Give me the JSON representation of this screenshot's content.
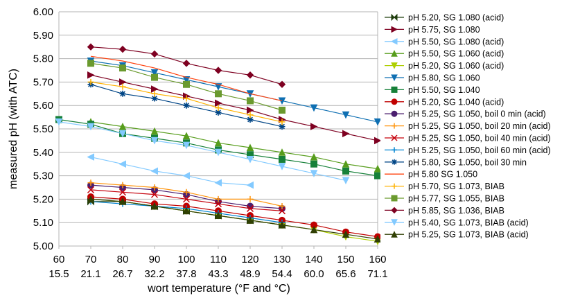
{
  "chart_data": {
    "type": "line",
    "title": "",
    "xlabel": "wort temperature (°F and °C)",
    "ylabel": "measured pH (with ATC)",
    "ylim": [
      5.0,
      6.0
    ],
    "xlim": [
      60,
      160
    ],
    "grid": "horizontal",
    "legend": "right",
    "y_ticks": [
      "5.00",
      "5.10",
      "5.20",
      "5.30",
      "5.40",
      "5.50",
      "5.60",
      "5.70",
      "5.80",
      "5.90",
      "6.00"
    ],
    "x_ticks_f": [
      "60",
      "70",
      "80",
      "90",
      "100",
      "110",
      "120",
      "130",
      "140",
      "150",
      "160"
    ],
    "x_ticks_c": [
      "15.5",
      "21.1",
      "26.7",
      "32.2",
      "37.8",
      "43.3",
      "48.9",
      "54.4",
      "60.0",
      "65.6",
      "71.1"
    ],
    "series": [
      {
        "name": "pH 5.20, SG 1.080 (acid)",
        "color": "#1f3d0c",
        "marker": "bowtie",
        "x": [
          70,
          80,
          90,
          100,
          110,
          120,
          130
        ],
        "y": [
          5.19,
          5.19,
          5.17,
          5.15,
          5.13,
          5.11,
          5.09
        ]
      },
      {
        "name": "pH 5.75, SG 1.080",
        "color": "#7e0021",
        "marker": "tri-right",
        "x": [
          70,
          80,
          90,
          100,
          110,
          120,
          130,
          140,
          150,
          160
        ],
        "y": [
          5.73,
          5.7,
          5.67,
          5.64,
          5.61,
          5.58,
          5.54,
          5.51,
          5.48,
          5.45
        ]
      },
      {
        "name": "pH 5.50, SG 1.080 (acid)",
        "color": "#83caff",
        "marker": "tri-left",
        "x": [
          70,
          80,
          90,
          100,
          110,
          120
        ],
        "y": [
          5.38,
          5.35,
          5.32,
          5.3,
          5.27,
          5.26
        ]
      },
      {
        "name": "pH 5.50, SG 1.060 (acid)",
        "color": "#579d1c",
        "marker": "tri-up",
        "x": [
          70,
          80,
          90,
          100,
          110,
          120,
          130,
          140,
          150,
          160
        ],
        "y": [
          5.53,
          5.51,
          5.49,
          5.47,
          5.44,
          5.42,
          5.4,
          5.38,
          5.35,
          5.33
        ]
      },
      {
        "name": "pH 5.20, SG 1.060 (acid)",
        "color": "#aecf00",
        "marker": "tri-down-bar",
        "x": [
          70,
          80,
          90,
          100,
          110,
          120,
          130,
          140,
          150,
          160
        ],
        "y": [
          5.2,
          5.19,
          5.17,
          5.15,
          5.13,
          5.11,
          5.09,
          5.07,
          5.04,
          5.02
        ]
      },
      {
        "name": "pH 5.80, SG 1.060",
        "color": "#0e6fb2",
        "marker": "tri-down",
        "x": [
          70,
          80,
          90,
          100,
          110,
          120,
          130,
          140,
          150,
          160
        ],
        "y": [
          5.79,
          5.77,
          5.74,
          5.71,
          5.68,
          5.65,
          5.62,
          5.59,
          5.56,
          5.53
        ]
      },
      {
        "name": "pH 5.50, SG 1.040",
        "color": "#168039",
        "marker": "square",
        "x": [
          60,
          70,
          80,
          90,
          100,
          110,
          120,
          130,
          140,
          150,
          160
        ],
        "y": [
          5.54,
          5.52,
          5.48,
          5.46,
          5.44,
          5.41,
          5.39,
          5.37,
          5.35,
          5.32,
          5.3
        ]
      },
      {
        "name": "pH 5.20, SG 1.040 (acid)",
        "color": "#c00000",
        "marker": "circle",
        "x": [
          70,
          80,
          90,
          100,
          110,
          120,
          130,
          140,
          150,
          160
        ],
        "y": [
          5.21,
          5.2,
          5.18,
          5.17,
          5.15,
          5.13,
          5.11,
          5.09,
          5.06,
          5.04
        ]
      },
      {
        "name": "pH 5.25, SG 1.050, boil 0 min (acid)",
        "color": "#4b1f6f",
        "marker": "circle",
        "x": [
          70,
          80,
          90,
          100,
          110,
          120,
          130
        ],
        "y": [
          5.26,
          5.25,
          5.24,
          5.22,
          5.19,
          5.17,
          5.16
        ]
      },
      {
        "name": "pH 5.25, SG 1.050, boil 20 min (acid)",
        "color": "#ff950e",
        "marker": "plus",
        "x": [
          70,
          80,
          90,
          100,
          110,
          120,
          130
        ],
        "y": [
          5.27,
          5.26,
          5.25,
          5.23,
          5.2,
          5.2,
          5.17
        ]
      },
      {
        "name": "pH 5.25, SG 1.050, boil 40 min (acid)",
        "color": "#c5000b",
        "marker": "x",
        "x": [
          70,
          80,
          90,
          100,
          110,
          120,
          130
        ],
        "y": [
          5.24,
          5.23,
          5.22,
          5.2,
          5.18,
          5.16,
          5.15
        ]
      },
      {
        "name": "pH 5.25, SG 1.050, boil 60 min (acid)",
        "color": "#0084d1",
        "marker": "plus",
        "x": [
          70,
          80,
          90,
          100,
          110,
          120,
          130
        ],
        "y": [
          5.19,
          5.18,
          5.17,
          5.16,
          5.14,
          5.12,
          5.1
        ]
      },
      {
        "name": "pH 5.80, SG 1.050, boil 30 min",
        "color": "#004586",
        "marker": "star",
        "x": [
          70,
          80,
          90,
          100,
          110,
          120,
          130
        ],
        "y": [
          5.69,
          5.65,
          5.63,
          5.6,
          5.57,
          5.54,
          5.51
        ]
      },
      {
        "name": "pH 5.80 SG 1.050",
        "color": "#ff420e",
        "marker": "none",
        "x": [
          70,
          80,
          90,
          100,
          110,
          120,
          130
        ],
        "y": [
          5.81,
          5.79,
          5.76,
          5.72,
          5.69,
          5.65,
          5.62
        ]
      },
      {
        "name": "pH 5.70, SG 1.073, BIAB",
        "color": "#ffb200",
        "marker": "plus",
        "x": [
          70,
          80,
          90,
          100,
          110,
          120,
          130
        ],
        "y": [
          5.7,
          5.68,
          5.65,
          5.63,
          5.59,
          5.56,
          5.53
        ]
      },
      {
        "name": "pH 5.77, SG 1.055, BIAB",
        "color": "#6a9a2e",
        "marker": "square",
        "x": [
          70,
          80,
          90,
          100,
          110,
          120,
          130
        ],
        "y": [
          5.78,
          5.76,
          5.72,
          5.69,
          5.65,
          5.62,
          5.58
        ]
      },
      {
        "name": "pH 5.85, SG 1.036, BIAB",
        "color": "#7e0021",
        "marker": "diamond",
        "x": [
          70,
          80,
          90,
          100,
          110,
          120,
          130
        ],
        "y": [
          5.85,
          5.84,
          5.82,
          5.78,
          5.75,
          5.73,
          5.69
        ]
      },
      {
        "name": "pH 5.40, SG 1.073, BIAB (acid)",
        "color": "#83caff",
        "marker": "tri-down",
        "x": [
          60,
          70,
          80,
          90,
          100,
          110,
          120,
          130,
          140,
          150
        ],
        "y": [
          5.53,
          5.51,
          5.48,
          5.45,
          5.43,
          5.4,
          5.37,
          5.34,
          5.31,
          5.28
        ]
      },
      {
        "name": "pH 5.25, SG 1.073, BIAB (acid)",
        "color": "#314004",
        "marker": "tri-up",
        "x": [
          70,
          80,
          90,
          100,
          110,
          120,
          130,
          140,
          150,
          160
        ],
        "y": [
          5.2,
          5.19,
          5.17,
          5.15,
          5.13,
          5.11,
          5.09,
          5.07,
          5.05,
          5.03
        ]
      }
    ]
  }
}
